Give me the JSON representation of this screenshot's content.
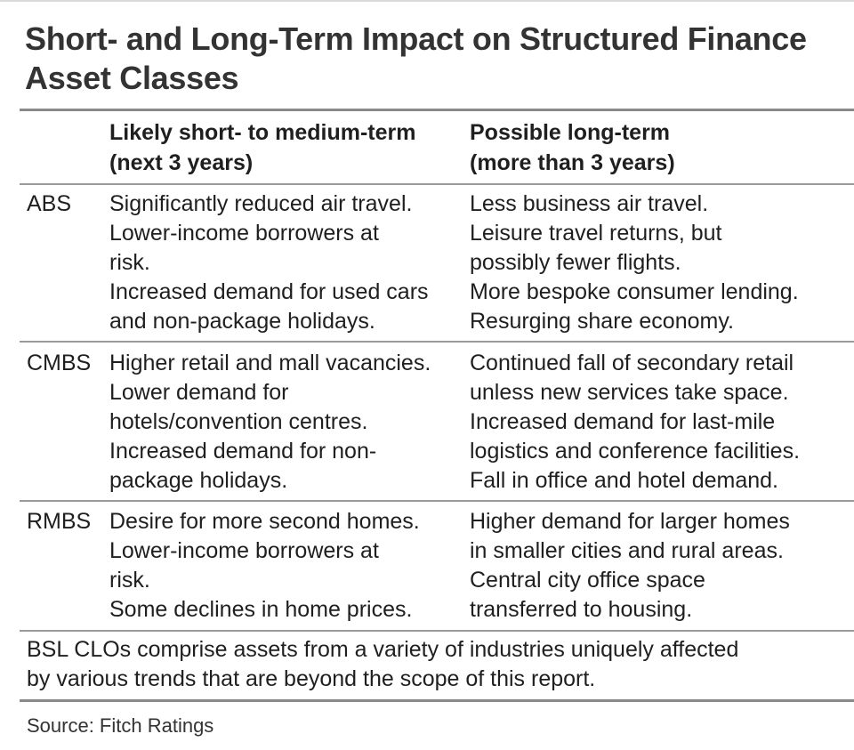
{
  "title_line1": "Short- and Long-Term Impact on Structured Finance",
  "title_line2": "Asset Classes",
  "headers": {
    "short": "Likely short- to medium-term\n(next 3 years)",
    "long": "Possible long-term\n(more than 3 years)"
  },
  "rows": [
    {
      "label": "ABS",
      "short": "Significantly reduced air travel.\nLower-income borrowers at\nrisk.\nIncreased demand for used cars\nand non-package holidays.",
      "long": "Less business air travel.\nLeisure travel returns, but\npossibly fewer flights.\nMore bespoke consumer lending.\nResurging share economy."
    },
    {
      "label": "CMBS",
      "short": "Higher retail and mall vacancies.\nLower demand for\nhotels/convention centres.\nIncreased demand for non-\npackage holidays.",
      "long": "Continued fall of secondary retail\nunless new services take space.\nIncreased demand for last-mile\nlogistics and conference facilities.\nFall in office and hotel demand."
    },
    {
      "label": "RMBS",
      "short": "Desire for more second homes.\nLower-income borrowers at\nrisk.\nSome declines in home prices.",
      "long": "Higher demand for larger homes\nin smaller cities and rural areas.\nCentral city office space\ntransferred to housing."
    }
  ],
  "note": "BSL CLOs comprise assets from a variety of industries uniquely affected\nby various trends that are beyond the scope of this report.",
  "source": "Source: Fitch Ratings"
}
